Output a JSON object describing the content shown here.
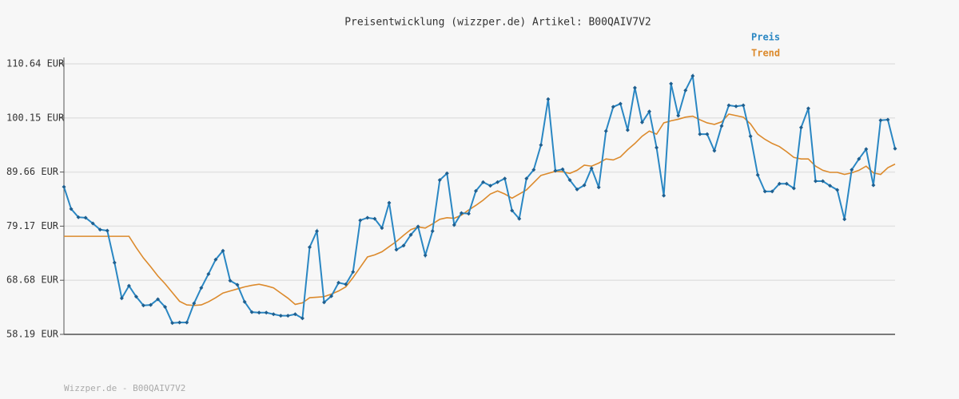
{
  "chart_data": {
    "type": "line",
    "title": "Preisentwicklung (wizzper.de) Artikel: B00QAIV7V2",
    "footer": "Wizzper.de - B00QAIV7V2",
    "ylim": [
      58.19,
      110.64
    ],
    "yticks": [
      {
        "value": 58.19,
        "label": "58.19 EUR"
      },
      {
        "value": 68.68,
        "label": "68.68 EUR"
      },
      {
        "value": 79.17,
        "label": "79.17 EUR"
      },
      {
        "value": 89.66,
        "label": "89.66 EUR"
      },
      {
        "value": 100.15,
        "label": "100.15 EUR"
      },
      {
        "value": 110.64,
        "label": "110.64 EUR"
      }
    ],
    "grid": true,
    "legend": "top-right",
    "series": [
      {
        "name": "Preis",
        "color": "#2a87c3",
        "markers": true,
        "values": [
          86.8,
          82.5,
          80.9,
          80.8,
          79.7,
          78.5,
          78.3,
          72.1,
          65.2,
          67.6,
          65.5,
          63.8,
          63.9,
          65.0,
          63.5,
          60.4,
          60.5,
          60.5,
          64.2,
          67.2,
          69.9,
          72.7,
          74.4,
          68.6,
          67.8,
          64.5,
          62.5,
          62.4,
          62.4,
          62.1,
          61.8,
          61.8,
          62.1,
          61.3,
          75.1,
          78.2,
          64.4,
          65.6,
          68.2,
          67.9,
          70.3,
          80.3,
          80.8,
          80.6,
          78.8,
          83.7,
          74.6,
          75.4,
          77.5,
          79.1,
          73.5,
          78.2,
          88.1,
          89.4,
          79.4,
          81.7,
          81.6,
          86.0,
          87.7,
          87.0,
          87.7,
          88.4,
          82.2,
          80.6,
          88.4,
          90.1,
          94.9,
          103.8,
          89.9,
          90.2,
          88.1,
          86.3,
          87.1,
          90.4,
          86.7,
          97.6,
          102.3,
          102.9,
          97.8,
          106.0,
          99.3,
          101.4,
          94.4,
          85.1,
          106.8,
          100.6,
          105.5,
          108.3,
          97.0,
          97.0,
          93.8,
          98.6,
          102.6,
          102.4,
          102.6,
          96.6,
          89.1,
          85.9,
          85.9,
          87.4,
          87.4,
          86.5,
          98.3,
          102.0,
          87.9,
          87.9,
          87.0,
          86.2,
          80.5,
          90.1,
          92.2,
          94.1,
          87.1,
          99.7,
          99.8,
          94.2
        ]
      },
      {
        "name": "Trend",
        "color": "#dc8a2c",
        "markers": false,
        "values": [
          77.2,
          77.2,
          77.2,
          77.2,
          77.2,
          77.2,
          77.2,
          77.2,
          77.2,
          77.2,
          75.0,
          73.0,
          71.3,
          69.5,
          68.0,
          66.3,
          64.6,
          63.9,
          63.8,
          63.9,
          64.5,
          65.3,
          66.2,
          66.6,
          67.0,
          67.4,
          67.7,
          67.9,
          67.6,
          67.2,
          66.2,
          65.2,
          64.0,
          64.3,
          65.3,
          65.4,
          65.5,
          66.0,
          66.6,
          67.4,
          69.2,
          71.2,
          73.2,
          73.6,
          74.2,
          75.2,
          76.2,
          77.4,
          78.5,
          79.0,
          78.8,
          79.6,
          80.5,
          80.8,
          80.7,
          81.3,
          82.3,
          83.2,
          84.2,
          85.4,
          86.0,
          85.4,
          84.6,
          85.4,
          86.2,
          87.6,
          89.0,
          89.4,
          89.8,
          89.7,
          89.4,
          90.0,
          91.0,
          90.8,
          91.4,
          92.2,
          92.0,
          92.6,
          94.0,
          95.2,
          96.6,
          97.6,
          97.0,
          99.2,
          99.6,
          99.9,
          100.3,
          100.5,
          99.8,
          99.2,
          98.9,
          99.4,
          100.9,
          100.6,
          100.3,
          99.0,
          97.0,
          96.0,
          95.2,
          94.6,
          93.6,
          92.5,
          92.2,
          92.2,
          90.8,
          90.0,
          89.6,
          89.6,
          89.2,
          89.5,
          90.0,
          90.8,
          89.5,
          89.2,
          90.5,
          91.2
        ]
      }
    ]
  }
}
